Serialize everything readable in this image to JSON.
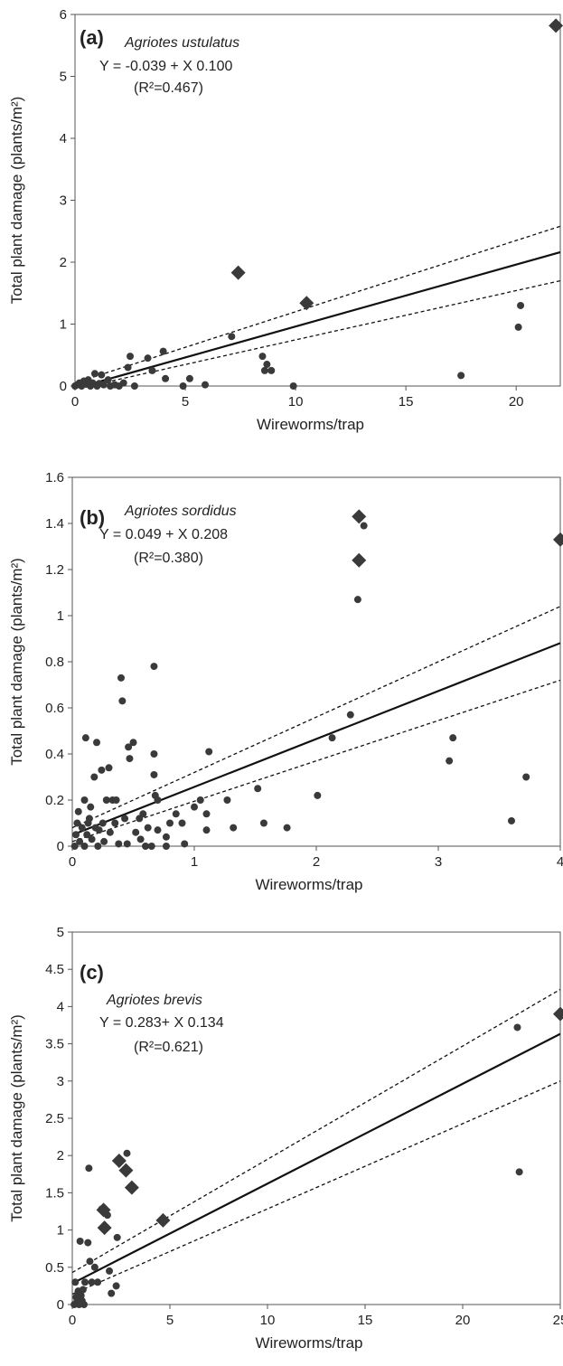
{
  "chart_data": [
    {
      "type": "scatter",
      "panel": "(a)",
      "species": "Agriotes ustulatus",
      "equation": "Y = -0.039 + X 0.100",
      "r2": "(R²=0.467)",
      "xlabel": "Wireworms/trap",
      "ylabel": "Total plant damage (plants/m²)",
      "xlim": [
        0,
        22
      ],
      "ylim": [
        0,
        6
      ],
      "xticks": [
        0,
        5,
        10,
        15,
        20
      ],
      "yticks": [
        0,
        1,
        2,
        3,
        4,
        5,
        6
      ],
      "regression": {
        "intercept": -0.039,
        "slope": 0.1,
        "x_range": [
          0,
          22
        ]
      },
      "confidence_bands": {
        "upper": [
          [
            0,
            0.05
          ],
          [
            22,
            2.58
          ]
        ],
        "lower": [
          [
            0,
            -0.05
          ],
          [
            22,
            1.7
          ]
        ]
      },
      "series": [
        {
          "marker": "circle",
          "points": [
            [
              0,
              0.0
            ],
            [
              0.1,
              0.02
            ],
            [
              0.2,
              0.05
            ],
            [
              0.3,
              0.0
            ],
            [
              0.4,
              0.08
            ],
            [
              0.5,
              0.03
            ],
            [
              0.6,
              0.1
            ],
            [
              0.7,
              0.0
            ],
            [
              0.8,
              0.05
            ],
            [
              0.9,
              0.2
            ],
            [
              1.0,
              0.0
            ],
            [
              1.1,
              0.04
            ],
            [
              1.2,
              0.18
            ],
            [
              1.3,
              0.02
            ],
            [
              1.5,
              0.1
            ],
            [
              1.6,
              0.0
            ],
            [
              1.8,
              0.02
            ],
            [
              2.0,
              0.0
            ],
            [
              2.2,
              0.05
            ],
            [
              2.4,
              0.3
            ],
            [
              2.5,
              0.48
            ],
            [
              2.7,
              0.0
            ],
            [
              3.3,
              0.45
            ],
            [
              3.5,
              0.25
            ],
            [
              4.0,
              0.56
            ],
            [
              4.1,
              0.12
            ],
            [
              4.9,
              0.0
            ],
            [
              5.2,
              0.12
            ],
            [
              5.9,
              0.02
            ],
            [
              7.1,
              0.8
            ],
            [
              8.5,
              0.48
            ],
            [
              8.6,
              0.25
            ],
            [
              8.7,
              0.35
            ],
            [
              8.9,
              0.25
            ],
            [
              9.9,
              0.0
            ],
            [
              17.5,
              0.17
            ],
            [
              20.1,
              0.95
            ],
            [
              20.2,
              1.3
            ]
          ]
        },
        {
          "marker": "diamond",
          "points": [
            [
              7.4,
              1.83
            ],
            [
              10.5,
              1.34
            ],
            [
              21.8,
              5.82
            ]
          ]
        }
      ]
    },
    {
      "type": "scatter",
      "panel": "(b)",
      "species": "Agriotes sordidus",
      "equation": "Y = 0.049 + X  0.208",
      "r2": "(R²=0.380)",
      "xlabel": "Wireworms/trap",
      "ylabel": "Total plant damage (plants/m²)",
      "xlim": [
        0,
        4
      ],
      "ylim": [
        0,
        1.6
      ],
      "xticks": [
        0,
        1,
        2,
        3,
        4
      ],
      "yticks": [
        0,
        0.2,
        0.4,
        0.6,
        0.8,
        1,
        1.2,
        1.4,
        1.6
      ],
      "ytick_labels": [
        "0",
        "0.2",
        "0.4",
        "0.6",
        "0.8",
        "1",
        "1.2",
        "1.4",
        "1.6"
      ],
      "regression": {
        "intercept": 0.049,
        "slope": 0.208,
        "x_range": [
          0,
          4
        ]
      },
      "confidence_bands": {
        "upper": [
          [
            0,
            0.08
          ],
          [
            4,
            1.04
          ]
        ],
        "lower": [
          [
            0,
            0.02
          ],
          [
            4,
            0.72
          ]
        ]
      },
      "series": [
        {
          "marker": "circle",
          "points": [
            [
              0.02,
              0.0
            ],
            [
              0.03,
              0.05
            ],
            [
              0.04,
              0.1
            ],
            [
              0.05,
              0.15
            ],
            [
              0.06,
              0.02
            ],
            [
              0.08,
              0.08
            ],
            [
              0.1,
              0.0
            ],
            [
              0.1,
              0.2
            ],
            [
              0.11,
              0.47
            ],
            [
              0.12,
              0.05
            ],
            [
              0.13,
              0.1
            ],
            [
              0.14,
              0.12
            ],
            [
              0.15,
              0.17
            ],
            [
              0.16,
              0.03
            ],
            [
              0.18,
              0.3
            ],
            [
              0.19,
              0.08
            ],
            [
              0.2,
              0.45
            ],
            [
              0.21,
              0.0
            ],
            [
              0.22,
              0.07
            ],
            [
              0.24,
              0.33
            ],
            [
              0.25,
              0.1
            ],
            [
              0.26,
              0.02
            ],
            [
              0.28,
              0.2
            ],
            [
              0.3,
              0.34
            ],
            [
              0.31,
              0.06
            ],
            [
              0.33,
              0.2
            ],
            [
              0.35,
              0.1
            ],
            [
              0.36,
              0.2
            ],
            [
              0.38,
              0.01
            ],
            [
              0.4,
              0.73
            ],
            [
              0.41,
              0.63
            ],
            [
              0.43,
              0.12
            ],
            [
              0.45,
              0.01
            ],
            [
              0.46,
              0.43
            ],
            [
              0.47,
              0.38
            ],
            [
              0.5,
              0.45
            ],
            [
              0.52,
              0.06
            ],
            [
              0.55,
              0.12
            ],
            [
              0.56,
              0.03
            ],
            [
              0.58,
              0.14
            ],
            [
              0.6,
              0.0
            ],
            [
              0.62,
              0.08
            ],
            [
              0.65,
              0.0
            ],
            [
              0.67,
              0.78
            ],
            [
              0.67,
              0.4
            ],
            [
              0.67,
              0.31
            ],
            [
              0.68,
              0.22
            ],
            [
              0.7,
              0.2
            ],
            [
              0.7,
              0.07
            ],
            [
              0.77,
              0.0
            ],
            [
              0.77,
              0.04
            ],
            [
              0.8,
              0.1
            ],
            [
              0.85,
              0.14
            ],
            [
              0.9,
              0.1
            ],
            [
              0.92,
              0.01
            ],
            [
              1.0,
              0.17
            ],
            [
              1.05,
              0.2
            ],
            [
              1.1,
              0.07
            ],
            [
              1.1,
              0.14
            ],
            [
              1.12,
              0.41
            ],
            [
              1.27,
              0.2
            ],
            [
              1.32,
              0.08
            ],
            [
              1.52,
              0.25
            ],
            [
              1.57,
              0.1
            ],
            [
              1.76,
              0.08
            ],
            [
              2.01,
              0.22
            ],
            [
              2.13,
              0.47
            ],
            [
              2.28,
              0.57
            ],
            [
              2.34,
              1.07
            ],
            [
              2.39,
              1.39
            ],
            [
              3.09,
              0.37
            ],
            [
              3.12,
              0.47
            ],
            [
              3.6,
              0.11
            ],
            [
              3.72,
              0.3
            ]
          ]
        },
        {
          "marker": "diamond",
          "points": [
            [
              2.35,
              1.43
            ],
            [
              2.35,
              1.24
            ],
            [
              4.0,
              1.33
            ]
          ]
        }
      ]
    },
    {
      "type": "scatter",
      "panel": "(c)",
      "species": "Agriotes brevis",
      "equation": "Y = 0.283+ X  0.134",
      "r2": "(R²=0.621)",
      "xlabel": "Wireworms/trap",
      "ylabel": "Total plant damage (plants/m²)",
      "xlim": [
        0,
        25
      ],
      "ylim": [
        0,
        5
      ],
      "xticks": [
        0,
        5,
        10,
        15,
        20,
        25
      ],
      "yticks": [
        0,
        0.5,
        1,
        1.5,
        2,
        2.5,
        3,
        3.5,
        4,
        4.5,
        5
      ],
      "ytick_labels": [
        "0",
        "0.5",
        "1",
        "1.5",
        "2",
        "2.5",
        "3",
        "3.5",
        "4",
        "4.5",
        "5"
      ],
      "regression": {
        "intercept": 0.283,
        "slope": 0.134,
        "x_range": [
          0,
          25
        ]
      },
      "confidence_bands": {
        "upper": [
          [
            0,
            0.43
          ],
          [
            25,
            4.23
          ]
        ],
        "lower": [
          [
            0,
            0.14
          ],
          [
            25,
            3.0
          ]
        ]
      },
      "series": [
        {
          "marker": "circle",
          "points": [
            [
              0.1,
              0.0
            ],
            [
              0.15,
              0.3
            ],
            [
              0.2,
              0.1
            ],
            [
              0.25,
              0.05
            ],
            [
              0.3,
              0.18
            ],
            [
              0.35,
              0.0
            ],
            [
              0.4,
              0.85
            ],
            [
              0.45,
              0.12
            ],
            [
              0.5,
              0.05
            ],
            [
              0.55,
              0.2
            ],
            [
              0.6,
              0.0
            ],
            [
              0.65,
              0.3
            ],
            [
              0.8,
              0.83
            ],
            [
              0.85,
              1.83
            ],
            [
              0.9,
              0.58
            ],
            [
              1.0,
              0.3
            ],
            [
              1.15,
              0.5
            ],
            [
              1.3,
              0.3
            ],
            [
              1.5,
              1.28
            ],
            [
              1.8,
              1.2
            ],
            [
              1.9,
              0.45
            ],
            [
              2.0,
              0.15
            ],
            [
              2.25,
              0.25
            ],
            [
              2.3,
              0.9
            ],
            [
              2.8,
              2.03
            ],
            [
              22.8,
              3.72
            ],
            [
              22.9,
              1.78
            ]
          ]
        },
        {
          "marker": "diamond",
          "points": [
            [
              1.6,
              1.27
            ],
            [
              1.65,
              1.03
            ],
            [
              2.4,
              1.93
            ],
            [
              2.75,
              1.8
            ],
            [
              3.05,
              1.57
            ],
            [
              4.65,
              1.13
            ],
            [
              25.0,
              3.9
            ]
          ]
        }
      ]
    }
  ]
}
